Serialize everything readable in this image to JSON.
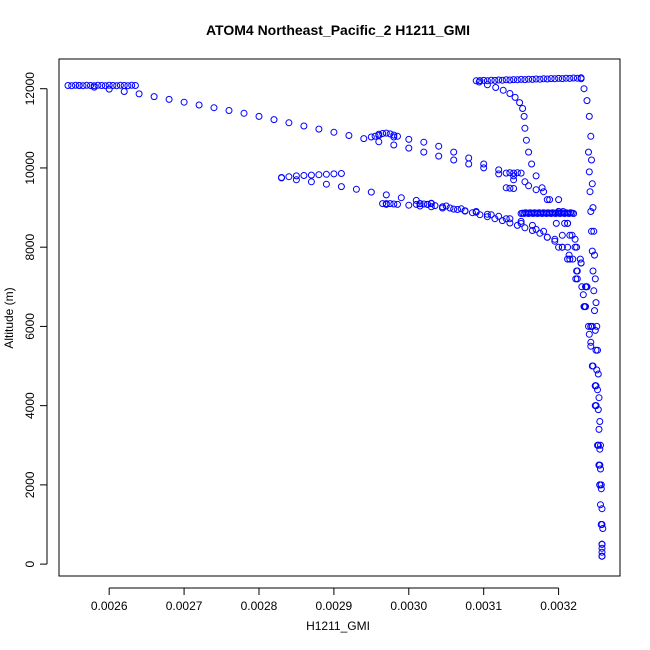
{
  "chart_data": {
    "type": "scatter",
    "title": "ATOM4 Northeast_Pacific_2 H1211_GMI",
    "xlabel": "H1211_GMI",
    "ylabel": "Altitude (m)",
    "xlim": [
      0.002533,
      0.003282
    ],
    "ylim": [
      -300,
      12750
    ],
    "x_ticks": [
      0.0026,
      0.0027,
      0.0028,
      0.0029,
      0.003,
      0.0031,
      0.0032
    ],
    "x_tick_labels": [
      "0.0026",
      "0.0027",
      "0.0028",
      "0.0029",
      "0.0030",
      "0.0031",
      "0.0032"
    ],
    "y_ticks": [
      0,
      2000,
      4000,
      6000,
      8000,
      10000,
      12000
    ],
    "y_tick_labels": [
      "0",
      "2000",
      "4000",
      "6000",
      "8000",
      "10000",
      "12000"
    ],
    "grid": false,
    "marker": "open-circle",
    "color": "#0000ff",
    "series": [
      {
        "x": [
          0.003258,
          0.003257,
          0.003255,
          0.003252,
          0.003249,
          0.003245,
          0.003241,
          0.003236,
          0.003231,
          0.003225,
          0.003219,
          0.003212,
          0.003205,
          0.003197
        ],
        "y": [
          200,
          1000,
          2000,
          3000,
          4000,
          5000,
          5800,
          6500,
          7000,
          7400,
          7700,
          8000,
          8300,
          8600
        ]
      },
      {
        "x": [
          0.003258,
          0.003257,
          0.003255,
          0.003253,
          0.00325,
          0.003246,
          0.00324,
          0.003233,
          0.003224,
          0.003214,
          0.003205,
          0.003195,
          0.003185,
          0.003175,
          0.003165,
          0.003155,
          0.003145,
          0.003135,
          0.003125,
          0.003115,
          0.003105,
          0.003095,
          0.003085,
          0.003075,
          0.003065,
          0.003055,
          0.003045,
          0.003035,
          0.003025,
          0.003015
        ],
        "y": [
          200,
          1000,
          2000,
          3000,
          4000,
          5000,
          6000,
          6800,
          7400,
          7800,
          8000,
          8150,
          8250,
          8350,
          8420,
          8490,
          8550,
          8610,
          8670,
          8720,
          8770,
          8820,
          8870,
          8910,
          8950,
          8990,
          9020,
          9050,
          9080,
          9100
        ]
      },
      {
        "x": [
          0.003258,
          0.003256,
          0.003253,
          0.003249,
          0.003243,
          0.003235,
          0.003225,
          0.003215,
          0.003205,
          0.003195,
          0.00318,
          0.003165,
          0.00315,
          0.003135,
          0.00312,
          0.003105,
          0.00309,
          0.003075,
          0.00306,
          0.003045,
          0.00303,
          0.003015,
          0.003,
          0.002985,
          0.00297
        ],
        "y": [
          300,
          1500,
          3000,
          4500,
          5600,
          6500,
          7200,
          7700,
          8000,
          8200,
          8400,
          8550,
          8650,
          8720,
          8780,
          8830,
          8880,
          8920,
          8960,
          8990,
          9020,
          9040,
          9060,
          9080,
          9100
        ]
      },
      {
        "x": [
          0.003258,
          0.003255,
          0.00325,
          0.003243,
          0.003234,
          0.003223,
          0.003212,
          0.0032,
          0.003185,
          0.00317,
          0.00315,
          0.00313,
          0.00311,
          0.00309,
          0.00307,
          0.00305,
          0.00303,
          0.00301,
          0.00299,
          0.00297,
          0.00295,
          0.00293,
          0.00291,
          0.00289,
          0.00287,
          0.00285,
          0.00283
        ],
        "y": [
          400,
          2000,
          4000,
          5500,
          6500,
          7200,
          7700,
          8000,
          8250,
          8450,
          8600,
          8720,
          8820,
          8900,
          8970,
          9040,
          9110,
          9180,
          9250,
          9320,
          9390,
          9460,
          9530,
          9590,
          9650,
          9700,
          9750
        ]
      },
      {
        "x": [
          0.003258,
          0.003255,
          0.00325,
          0.003245,
          0.003238,
          0.00323,
          0.003222,
          0.003215,
          0.003208,
          0.0032,
          0.003185,
          0.00317,
          0.003155,
          0.00314,
          0.00312,
          0.0031,
          0.00308,
          0.00306,
          0.00304,
          0.00302,
          0.003,
          0.00298,
          0.00296
        ],
        "y": [
          500,
          2500,
          4500,
          6000,
          7000,
          7600,
          8000,
          8300,
          8600,
          8900,
          9200,
          9450,
          9650,
          9800,
          9950,
          10100,
          10250,
          10400,
          10550,
          10650,
          10720,
          10780,
          10820
        ]
      },
      {
        "x": [
          0.003258,
          0.003254,
          0.003249,
          0.003243,
          0.003237,
          0.00323,
          0.003224,
          0.003218,
          0.003212,
          0.003206,
          0.0032,
          0.00318,
          0.00316,
          0.00314,
          0.00312,
          0.0031,
          0.00308,
          0.00306,
          0.00304,
          0.00302,
          0.003,
          0.00298,
          0.00296,
          0.00294,
          0.00292,
          0.0029,
          0.00288,
          0.00286,
          0.00284,
          0.00282,
          0.0028,
          0.00278,
          0.00276,
          0.00274,
          0.00272,
          0.0027,
          0.00268,
          0.00266,
          0.00264,
          0.00262,
          0.0026,
          0.00258,
          0.00256
        ],
        "y": [
          500,
          2500,
          4500,
          6000,
          7000,
          7600,
          8000,
          8300,
          8600,
          8900,
          9200,
          9400,
          9550,
          9700,
          9850,
          10000,
          10100,
          10200,
          10300,
          10400,
          10500,
          10580,
          10660,
          10740,
          10820,
          10900,
          10980,
          11060,
          11140,
          11220,
          11300,
          11380,
          11450,
          11520,
          11590,
          11660,
          11730,
          11800,
          11870,
          11930,
          11990,
          12040,
          12080
        ]
      },
      {
        "x": [
          0.003258,
          0.003254,
          0.003249,
          0.003243,
          0.003236,
          0.003229,
          0.003222,
          0.003212,
          0.0032,
          0.003188,
          0.003178,
          0.00317,
          0.003164,
          0.00316,
          0.003157,
          0.003155,
          0.003154,
          0.003152,
          0.003148,
          0.003142,
          0.003135,
          0.003126,
          0.003116,
          0.003105,
          0.003094
        ],
        "y": [
          500,
          2500,
          4500,
          6000,
          7000,
          7700,
          8200,
          8600,
          8900,
          9200,
          9500,
          9800,
          10100,
          10400,
          10700,
          11000,
          11300,
          11500,
          11650,
          11780,
          11880,
          11960,
          12030,
          12100,
          12170
        ]
      },
      {
        "x": [
          0.00315,
          0.003152,
          0.003154,
          0.003156,
          0.003158,
          0.00316,
          0.003162,
          0.003164,
          0.003166,
          0.003168,
          0.00317,
          0.003172,
          0.003174,
          0.003176,
          0.003178,
          0.00318,
          0.003182,
          0.003184,
          0.003186,
          0.003188,
          0.00319,
          0.003192,
          0.003194,
          0.003196,
          0.003198,
          0.0032,
          0.003202,
          0.003204,
          0.003206,
          0.003208,
          0.00321,
          0.003212,
          0.003214,
          0.003216,
          0.003218,
          0.00322
        ],
        "y": [
          8850,
          8860,
          8850,
          8870,
          8860,
          8850,
          8870,
          8860,
          8850,
          8870,
          8860,
          8850,
          8870,
          8860,
          8850,
          8870,
          8860,
          8850,
          8870,
          8860,
          8850,
          8870,
          8860,
          8850,
          8870,
          8860,
          8850,
          8870,
          8860,
          8850,
          8870,
          8860,
          8850,
          8870,
          8860,
          8850
        ]
      },
      {
        "x": [
          0.00309,
          0.003095,
          0.0031,
          0.003105,
          0.00311,
          0.003115,
          0.00312,
          0.003125,
          0.00313,
          0.003135,
          0.00314,
          0.003145,
          0.00315,
          0.003155,
          0.00316,
          0.003165,
          0.00317,
          0.003175,
          0.00318,
          0.003185,
          0.00319,
          0.003195,
          0.0032,
          0.003205,
          0.00321,
          0.003215,
          0.00322,
          0.003225,
          0.00323
        ],
        "y": [
          12200,
          12205,
          12210,
          12200,
          12215,
          12210,
          12220,
          12215,
          12225,
          12220,
          12230,
          12225,
          12235,
          12230,
          12240,
          12235,
          12245,
          12240,
          12250,
          12245,
          12255,
          12250,
          12260,
          12255,
          12265,
          12260,
          12270,
          12265,
          12275
        ]
      },
      {
        "x": [
          0.00323,
          0.003234,
          0.003238,
          0.003241,
          0.003243,
          0.003244,
          0.003245,
          0.003246,
          0.003247,
          0.003248,
          0.003249,
          0.00325,
          0.003251,
          0.003252,
          0.003253,
          0.003254,
          0.003255,
          0.003256,
          0.003257,
          0.003258,
          0.003258
        ],
        "y": [
          12250,
          12000,
          11700,
          11300,
          10800,
          10200,
          9600,
          9000,
          8400,
          7800,
          7200,
          6600,
          6000,
          5400,
          4800,
          4200,
          3600,
          3000,
          2000,
          1000,
          200
        ]
      },
      {
        "x": [
          0.002545,
          0.00255,
          0.002555,
          0.00256,
          0.002565,
          0.00257,
          0.002575,
          0.00258,
          0.002585,
          0.00259,
          0.002595,
          0.0026,
          0.002605,
          0.00261,
          0.002615,
          0.00262,
          0.002625,
          0.00263,
          0.002635
        ],
        "y": [
          12080,
          12075,
          12085,
          12080,
          12075,
          12085,
          12080,
          12075,
          12085,
          12080,
          12075,
          12085,
          12080,
          12075,
          12085,
          12080,
          12075,
          12085,
          12080
        ]
      },
      {
        "x": [
          0.00283,
          0.00284,
          0.00285,
          0.00286,
          0.00287,
          0.00288,
          0.00289,
          0.0029,
          0.00291
        ],
        "y": [
          9760,
          9780,
          9800,
          9810,
          9820,
          9830,
          9840,
          9850,
          9860
        ]
      },
      {
        "x": [
          0.00295,
          0.002955,
          0.00296,
          0.002965,
          0.00297,
          0.002975,
          0.00298,
          0.002985
        ],
        "y": [
          10780,
          10800,
          10850,
          10870,
          10880,
          10860,
          10830,
          10800
        ]
      },
      {
        "x": [
          0.002965,
          0.00297,
          0.002975,
          0.00298,
          0.00301,
          0.003015,
          0.00302,
          0.003025,
          0.00303
        ],
        "y": [
          9100,
          9080,
          9100,
          9090,
          9080,
          9100,
          9090,
          9080,
          9100
        ]
      },
      {
        "x": [
          0.00313,
          0.003135,
          0.00314,
          0.003145,
          0.00315,
          0.00313,
          0.003135,
          0.00314
        ],
        "y": [
          9870,
          9880,
          9870,
          9880,
          9870,
          9500,
          9490,
          9480
        ]
      },
      {
        "x": [
          0.00324,
          0.003241,
          0.003242,
          0.003243,
          0.003244,
          0.003245,
          0.003246,
          0.003247,
          0.003248,
          0.003249,
          0.00325,
          0.003251,
          0.003252,
          0.003253,
          0.003254,
          0.003255,
          0.003256,
          0.003257,
          0.003258,
          0.003259
        ],
        "y": [
          10400,
          9900,
          9400,
          8900,
          8400,
          7900,
          7400,
          6900,
          6400,
          5900,
          5400,
          4900,
          4400,
          3900,
          3400,
          2900,
          2400,
          1900,
          1400,
          900
        ]
      }
    ]
  }
}
